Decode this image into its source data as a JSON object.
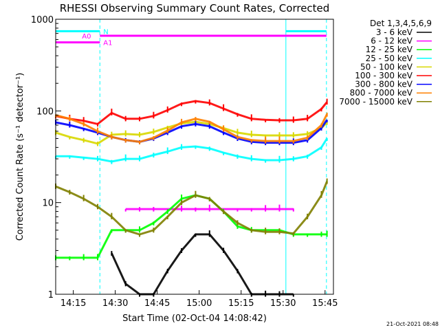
{
  "chart_data": {
    "type": "line",
    "title": "RHESSI Observing Summary Count Rates, Corrected",
    "xlabel": "Start Time (02-Oct-04 14:08:42)",
    "ylabel": "Corrected Count Rate (s⁻¹ detector⁻¹)",
    "footer": "21-Oct-2021 08:48",
    "x_ticks": [
      "14:15",
      "14:30",
      "14:45",
      "15:00",
      "15:15",
      "15:30",
      "15:45"
    ],
    "y_ticks": [
      "1",
      "10",
      "100",
      "1000"
    ],
    "y_scale": "log",
    "ylim": [
      1,
      1000
    ],
    "xlim": [
      "14:08:42",
      "15:48:00"
    ],
    "legend_title": "Det 1,3,4,5,6,9",
    "legend_position": "right",
    "flags": [
      {
        "label": "N",
        "color": "#00ffff",
        "segments": [
          [
            "14:08:42",
            "14:24:30"
          ],
          [
            "15:31:00",
            "15:45:30"
          ]
        ],
        "level": 740
      },
      {
        "label": "A0",
        "color": "#ff00ff",
        "segments": [
          [
            "14:24:30",
            "15:45:30"
          ]
        ],
        "level": 660
      },
      {
        "label": "A1",
        "color": "#ff00ff",
        "segments": [
          [
            "14:08:42",
            "14:24:30"
          ]
        ],
        "level": 560
      }
    ],
    "vlines": [
      {
        "x": "14:08:42",
        "style": "solid"
      },
      {
        "x": "14:24:30",
        "style": "dashed"
      },
      {
        "x": "15:31:00",
        "style": "solid"
      },
      {
        "x": "15:45:30",
        "style": "dashed"
      }
    ],
    "x_minutes": [
      0,
      5,
      10,
      15,
      20,
      25,
      30,
      35,
      40,
      45,
      50,
      55,
      60,
      65,
      70,
      75,
      80,
      85,
      90,
      95,
      97
    ],
    "series": [
      {
        "name": "3 - 6 keV",
        "color": "#000000",
        "values": [
          null,
          null,
          null,
          null,
          2.8,
          1.3,
          1.0,
          1.0,
          1.8,
          3.0,
          4.5,
          4.5,
          3.0,
          1.8,
          1.0,
          1.0,
          1.0,
          1.0,
          null,
          null,
          null
        ]
      },
      {
        "name": "6 - 12 keV",
        "color": "#ff00ff",
        "values": [
          null,
          null,
          null,
          null,
          null,
          8.5,
          8.5,
          8.5,
          8.5,
          8.5,
          8.5,
          8.5,
          8.5,
          8.5,
          8.5,
          8.5,
          8.5,
          8.5,
          null,
          null,
          null
        ]
      },
      {
        "name": "12 - 25 keV",
        "color": "#00ff00",
        "values": [
          2.5,
          2.5,
          2.5,
          2.5,
          5.0,
          5.0,
          5.0,
          6.0,
          8.0,
          11.0,
          12.0,
          11.0,
          8.0,
          5.5,
          5.0,
          5.0,
          5.0,
          4.5,
          4.5,
          4.5,
          4.5
        ]
      },
      {
        "name": "25 - 50 keV",
        "color": "#00ffff",
        "values": [
          32,
          32,
          31,
          30,
          28,
          30,
          30,
          33,
          36,
          40,
          41,
          39,
          35,
          32,
          30,
          29,
          29,
          30,
          32,
          40,
          50
        ]
      },
      {
        "name": "50 - 100 keV",
        "color": "#d8d800",
        "values": [
          58,
          52,
          48,
          44,
          55,
          56,
          55,
          59,
          66,
          73,
          76,
          72,
          65,
          58,
          55,
          54,
          54,
          54,
          56,
          65,
          75
        ]
      },
      {
        "name": "100 - 300 keV",
        "color": "#ff0000",
        "values": [
          88,
          82,
          78,
          72,
          95,
          82,
          82,
          88,
          102,
          120,
          128,
          122,
          106,
          92,
          82,
          80,
          79,
          79,
          82,
          105,
          125
        ]
      },
      {
        "name": "300 - 800 keV",
        "color": "#0000ff",
        "values": [
          75,
          70,
          64,
          58,
          52,
          48,
          46,
          50,
          58,
          68,
          72,
          68,
          58,
          50,
          46,
          45,
          45,
          45,
          48,
          65,
          80
        ]
      },
      {
        "name": "800 - 7000 keV",
        "color": "#ff8000",
        "values": [
          90,
          82,
          72,
          60,
          52,
          48,
          46,
          51,
          61,
          75,
          82,
          76,
          63,
          52,
          48,
          47,
          47,
          47,
          51,
          70,
          92
        ]
      },
      {
        "name": "7000 - 15000 keV",
        "color": "#808000",
        "values": [
          15,
          13,
          11,
          9,
          7,
          5,
          4.5,
          5,
          7,
          10,
          12,
          11,
          8,
          6,
          5,
          4.8,
          4.8,
          4.6,
          7,
          12,
          17
        ]
      }
    ]
  }
}
